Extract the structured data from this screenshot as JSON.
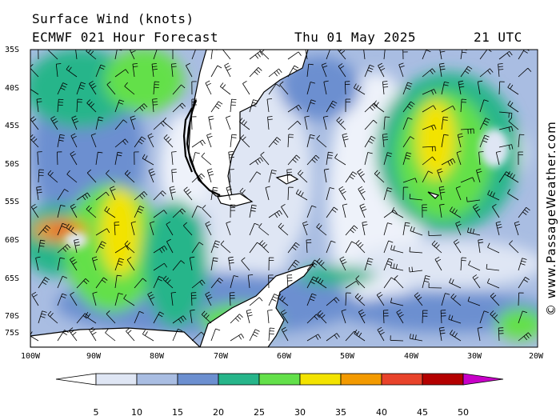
{
  "header": {
    "title": "Surface Wind (knots)",
    "model": "ECMWF 021 Hour Forecast",
    "date": "Thu 01 May 2025",
    "time": "21 UTC"
  },
  "map": {
    "lat_labels": [
      "35S",
      "40S",
      "45S",
      "50S",
      "55S",
      "60S",
      "65S",
      "70S",
      "75S"
    ],
    "lon_labels": [
      "100W",
      "90W",
      "80W",
      "70W",
      "60W",
      "50W",
      "40W",
      "30W",
      "20W"
    ],
    "credit": "© www.PassageWeather.com"
  },
  "colorbar": {
    "labels": [
      "5",
      "10",
      "15",
      "20",
      "25",
      "30",
      "35",
      "40",
      "45",
      "50"
    ],
    "colors": [
      "#ffffff",
      "#dfe6f4",
      "#a9bde2",
      "#6c8fd0",
      "#27b58a",
      "#63e04a",
      "#f3e300",
      "#f39a00",
      "#e8432b",
      "#b40000",
      "#c800c8"
    ]
  }
}
